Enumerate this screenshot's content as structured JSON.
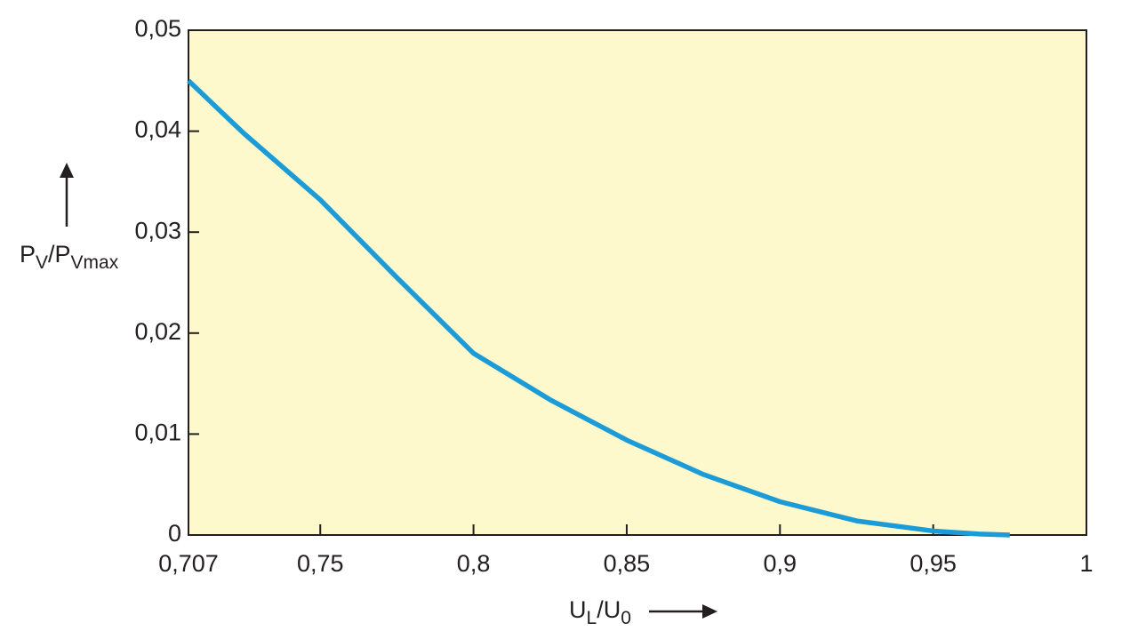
{
  "chart_data": {
    "type": "line",
    "xlabel": [
      "U",
      "L",
      "/U",
      "0"
    ],
    "ylabel": [
      "P",
      "V",
      "/P",
      "Vmax"
    ],
    "x": [
      0.707,
      0.725,
      0.75,
      0.775,
      0.8,
      0.825,
      0.85,
      0.875,
      0.9,
      0.925,
      0.95,
      0.965,
      0.975
    ],
    "series": [
      {
        "color": "#1b9bd7",
        "values": [
          0.045,
          0.0398,
          0.0332,
          0.0255,
          0.018,
          0.0134,
          0.0094,
          0.006,
          0.0033,
          0.0014,
          0.0004,
          0.0001,
          0
        ]
      }
    ],
    "xlim": [
      0.707,
      1
    ],
    "ylim": [
      0,
      0.05
    ],
    "xticks": [
      {
        "value": 0.707,
        "label": "0,707"
      },
      {
        "value": 0.75,
        "label": "0,75"
      },
      {
        "value": 0.8,
        "label": "0,8"
      },
      {
        "value": 0.85,
        "label": "0,85"
      },
      {
        "value": 0.9,
        "label": "0,9"
      },
      {
        "value": 0.95,
        "label": "0,95"
      },
      1
    ],
    "yticks": [
      0,
      {
        "value": 0.01,
        "label": "0,01"
      },
      {
        "value": 0.02,
        "label": "0,02"
      },
      {
        "value": 0.03,
        "label": "0,03"
      },
      {
        "value": 0.04,
        "label": "0,04"
      },
      {
        "value": 0.05,
        "label": "0,05"
      }
    ],
    "plot_background": "#fdf9cd"
  }
}
